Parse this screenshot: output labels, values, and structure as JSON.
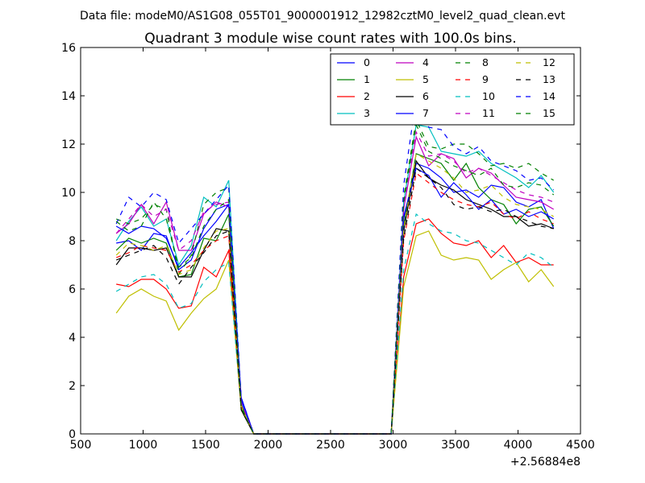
{
  "header": {
    "file_title": "Data file: modeM0/AS1G08_055T01_9000001912_12982cztM0_level2_quad_clean.evt"
  },
  "chart_data": {
    "type": "line",
    "title": "Quadrant 3 module wise count rates with 100.0s bins.",
    "xlabel": "",
    "ylabel": "",
    "x_offset_label": "+2.56884e8",
    "xlim": [
      500,
      4500
    ],
    "ylim": [
      0,
      16
    ],
    "xticks": [
      500,
      1000,
      1500,
      2000,
      2500,
      3000,
      3500,
      4000,
      4500
    ],
    "yticks": [
      0,
      2,
      4,
      6,
      8,
      10,
      12,
      14,
      16
    ],
    "legend_position": "top-right",
    "x": [
      785,
      885,
      985,
      1085,
      1185,
      1285,
      1385,
      1485,
      1585,
      1685,
      1785,
      1885,
      1985,
      2085,
      2185,
      2285,
      2385,
      2485,
      2585,
      2685,
      2785,
      2885,
      2985,
      3085,
      3185,
      3285,
      3385,
      3485,
      3585,
      3685,
      3785,
      3885,
      3985,
      4085,
      4185,
      4285
    ],
    "series": [
      {
        "name": "0",
        "color": "#0000ff",
        "dash": "solid",
        "values": [
          7.9,
          8.0,
          7.6,
          8.3,
          8.2,
          6.8,
          7.2,
          8.5,
          9.3,
          9.5,
          1.5,
          0,
          0,
          0,
          0,
          0,
          0,
          0,
          0,
          0,
          0,
          0,
          0,
          8.9,
          11.2,
          11.0,
          10.6,
          10.0,
          10.1,
          9.8,
          10.3,
          10.2,
          9.6,
          9.4,
          9.7,
          8.5
        ]
      },
      {
        "name": "1",
        "color": "#008000",
        "dash": "solid",
        "values": [
          7.6,
          8.1,
          7.9,
          8.1,
          7.9,
          6.5,
          6.6,
          8.1,
          8.0,
          9.1,
          1.0,
          0,
          0,
          0,
          0,
          0,
          0,
          0,
          0,
          0,
          0,
          0,
          0,
          8.6,
          11.6,
          11.4,
          11.2,
          10.5,
          11.2,
          10.2,
          9.7,
          9.5,
          8.7,
          9.3,
          9.4,
          8.6
        ]
      },
      {
        "name": "2",
        "color": "#ff0000",
        "dash": "solid",
        "values": [
          6.2,
          6.1,
          6.4,
          6.4,
          6.0,
          5.2,
          5.3,
          6.9,
          6.5,
          7.6,
          1.2,
          0,
          0,
          0,
          0,
          0,
          0,
          0,
          0,
          0,
          0,
          0,
          0,
          6.5,
          8.7,
          8.9,
          8.3,
          7.9,
          7.8,
          8.0,
          7.3,
          7.8,
          7.1,
          7.3,
          7.0,
          7.0
        ]
      },
      {
        "name": "3",
        "color": "#00bfbf",
        "dash": "solid",
        "values": [
          8.0,
          8.8,
          9.4,
          8.6,
          8.9,
          7.0,
          7.8,
          9.8,
          9.4,
          10.5,
          1.3,
          0,
          0,
          0,
          0,
          0,
          0,
          0,
          0,
          0,
          0,
          0,
          0,
          9.6,
          12.8,
          12.7,
          11.7,
          11.6,
          11.5,
          11.7,
          11.2,
          10.9,
          10.6,
          10.2,
          10.7,
          10.0
        ]
      },
      {
        "name": "4",
        "color": "#bf00bf",
        "dash": "solid",
        "values": [
          8.3,
          8.7,
          9.5,
          8.7,
          9.6,
          7.6,
          7.6,
          9.1,
          9.6,
          9.4,
          1.4,
          0,
          0,
          0,
          0,
          0,
          0,
          0,
          0,
          0,
          0,
          0,
          0,
          9.3,
          12.3,
          11.1,
          11.6,
          11.4,
          10.6,
          11.0,
          10.8,
          10.3,
          9.8,
          9.7,
          9.6,
          9.3
        ]
      },
      {
        "name": "5",
        "color": "#bfbf00",
        "dash": "solid",
        "values": [
          5.0,
          5.7,
          6.0,
          5.7,
          5.5,
          4.3,
          5.0,
          5.6,
          6.0,
          7.2,
          1.0,
          0,
          0,
          0,
          0,
          0,
          0,
          0,
          0,
          0,
          0,
          0,
          0,
          6.1,
          8.2,
          8.4,
          7.4,
          7.2,
          7.3,
          7.2,
          6.4,
          6.8,
          7.1,
          6.3,
          6.8,
          6.1
        ]
      },
      {
        "name": "6",
        "color": "#000000",
        "dash": "solid",
        "values": [
          7.0,
          7.7,
          7.7,
          7.6,
          7.7,
          6.5,
          6.5,
          7.6,
          8.5,
          8.4,
          1.0,
          0,
          0,
          0,
          0,
          0,
          0,
          0,
          0,
          0,
          0,
          0,
          0,
          8.4,
          11.3,
          10.6,
          10.3,
          10.1,
          9.7,
          9.5,
          9.3,
          9.0,
          9.0,
          8.6,
          8.7,
          8.5
        ]
      },
      {
        "name": "7",
        "color": "#0000ff",
        "dash": "solid",
        "values": [
          8.6,
          8.3,
          8.6,
          8.5,
          8.1,
          6.9,
          7.5,
          8.2,
          8.8,
          9.5,
          1.4,
          0,
          0,
          0,
          0,
          0,
          0,
          0,
          0,
          0,
          0,
          0,
          0,
          9.0,
          11.0,
          10.7,
          9.8,
          10.4,
          9.9,
          9.3,
          9.7,
          9.1,
          9.3,
          9.0,
          9.2,
          8.9
        ]
      },
      {
        "name": "8",
        "color": "#008000",
        "dash": "dashed",
        "values": [
          8.9,
          8.7,
          8.9,
          9.5,
          9.3,
          6.6,
          7.4,
          9.5,
          10.0,
          10.2,
          1.2,
          0,
          0,
          0,
          0,
          0,
          0,
          0,
          0,
          0,
          0,
          0,
          0,
          9.8,
          13.0,
          11.9,
          11.8,
          12.0,
          12.0,
          11.6,
          11.1,
          11.2,
          11.0,
          11.2,
          10.8,
          10.5
        ]
      },
      {
        "name": "9",
        "color": "#ff0000",
        "dash": "dashed",
        "values": [
          7.3,
          7.5,
          7.8,
          7.7,
          7.6,
          6.7,
          7.0,
          7.6,
          8.0,
          8.2,
          1.1,
          0,
          0,
          0,
          0,
          0,
          0,
          0,
          0,
          0,
          0,
          0,
          0,
          8.0,
          10.8,
          10.4,
          10.0,
          9.7,
          9.5,
          9.4,
          9.6,
          9.1,
          8.9,
          9.2,
          8.9,
          8.7
        ]
      },
      {
        "name": "10",
        "color": "#00bfbf",
        "dash": "dashed",
        "values": [
          5.9,
          6.2,
          6.5,
          6.6,
          6.2,
          5.2,
          5.4,
          6.3,
          6.8,
          7.1,
          1.1,
          0,
          0,
          0,
          0,
          0,
          0,
          0,
          0,
          0,
          0,
          0,
          0,
          6.8,
          9.1,
          8.7,
          8.4,
          8.3,
          8.0,
          7.9,
          7.6,
          7.3,
          7.0,
          7.5,
          7.3,
          6.9
        ]
      },
      {
        "name": "11",
        "color": "#bf00bf",
        "dash": "dashed",
        "values": [
          8.3,
          8.9,
          9.5,
          9.0,
          9.3,
          7.6,
          8.0,
          9.2,
          9.5,
          9.6,
          1.3,
          0,
          0,
          0,
          0,
          0,
          0,
          0,
          0,
          0,
          0,
          0,
          0,
          9.4,
          12.5,
          11.5,
          11.6,
          11.3,
          10.8,
          11.0,
          10.7,
          10.4,
          10.1,
          9.9,
          9.8,
          9.6
        ]
      },
      {
        "name": "12",
        "color": "#bfbf00",
        "dash": "dashed",
        "values": [
          7.4,
          7.9,
          7.8,
          7.6,
          7.8,
          6.6,
          6.8,
          7.7,
          8.4,
          8.5,
          1.1,
          0,
          0,
          0,
          0,
          0,
          0,
          0,
          0,
          0,
          0,
          0,
          0,
          8.5,
          11.6,
          11.3,
          11.0,
          10.6,
          10.0,
          10.1,
          10.3,
          9.8,
          9.5,
          9.4,
          9.3,
          9.0
        ]
      },
      {
        "name": "13",
        "color": "#000000",
        "dash": "dashed",
        "values": [
          7.2,
          7.4,
          7.6,
          7.8,
          7.3,
          6.2,
          6.9,
          7.5,
          8.2,
          8.4,
          1.0,
          0,
          0,
          0,
          0,
          0,
          0,
          0,
          0,
          0,
          0,
          0,
          0,
          8.1,
          11.0,
          10.6,
          10.2,
          9.5,
          9.3,
          9.4,
          9.2,
          9.3,
          9.0,
          8.8,
          8.6,
          8.5
        ]
      },
      {
        "name": "14",
        "color": "#0000ff",
        "dash": "dashed",
        "values": [
          8.7,
          9.8,
          9.4,
          10.0,
          9.7,
          7.9,
          8.5,
          9.1,
          9.7,
          10.3,
          1.5,
          0,
          0,
          0,
          0,
          0,
          0,
          0,
          0,
          0,
          0,
          0,
          0,
          10.3,
          13.9,
          12.7,
          12.6,
          11.9,
          11.6,
          11.9,
          11.3,
          11.1,
          10.9,
          10.5,
          10.6,
          10.1
        ]
      },
      {
        "name": "15",
        "color": "#008000",
        "dash": "dashed",
        "values": [
          8.8,
          8.4,
          8.6,
          9.6,
          8.9,
          6.9,
          7.3,
          8.6,
          9.3,
          9.7,
          1.1,
          0,
          0,
          0,
          0,
          0,
          0,
          0,
          0,
          0,
          0,
          0,
          0,
          9.6,
          12.8,
          11.7,
          11.4,
          11.1,
          10.9,
          10.7,
          11.0,
          10.3,
          10.2,
          10.4,
          10.3,
          9.9
        ]
      }
    ]
  }
}
